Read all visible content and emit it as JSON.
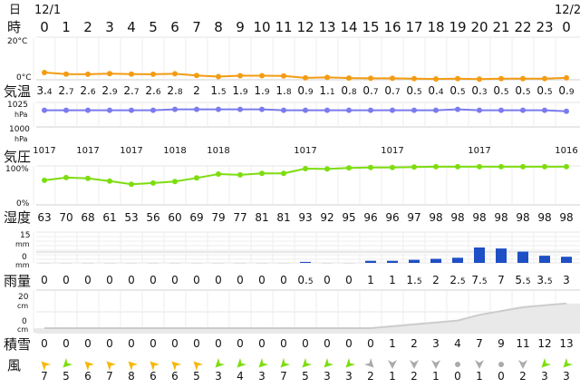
{
  "hour_row": {
    "day_label": "日",
    "hour_label": "時",
    "dates": [
      "12/1",
      "12/2"
    ],
    "hours": [
      0,
      1,
      2,
      3,
      4,
      5,
      6,
      7,
      8,
      9,
      10,
      11,
      12,
      13,
      14,
      15,
      16,
      17,
      18,
      19,
      20,
      21,
      22,
      23,
      0
    ]
  },
  "temperature": {
    "label": "気温",
    "axis_top": "20°C",
    "axis_bottom": "0°C",
    "color": "#f39c12",
    "values": [
      3.4,
      2.7,
      2.6,
      2.9,
      2.7,
      2.6,
      2.8,
      2,
      1.5,
      1.9,
      1.9,
      1.8,
      0.9,
      1.1,
      0.8,
      0.7,
      0.7,
      0.5,
      0.4,
      0.5,
      0.3,
      0.5,
      0.5,
      0.5,
      0.9
    ],
    "labels": [
      "3.4",
      "2.7",
      "2.6",
      "2.9",
      "2.7",
      "2.6",
      "2.8",
      "2",
      "1.5",
      "1.9",
      "1.9",
      "1.8",
      "0.9",
      "1.1",
      "0.8",
      "0.7",
      "0.7",
      "0.5",
      "0.4",
      "0.5",
      "0.3",
      "0.5",
      "0.5",
      "0.5",
      "0.9"
    ]
  },
  "pressure": {
    "label": "気圧",
    "axis_top": "1025",
    "axis_top_unit": "hPa",
    "axis_bottom": "1000",
    "axis_bottom_unit": "hPa",
    "color": "#7b7bee",
    "values": [
      1017,
      1017,
      1017,
      1017,
      1017,
      1017,
      1018,
      1018,
      1018,
      1018,
      1018,
      1017,
      1017,
      1017,
      1017,
      1017,
      1017,
      1017,
      1017,
      1018,
      1017,
      1017,
      1017,
      1017,
      1016
    ],
    "printed": [
      "1017",
      "",
      "1017",
      "",
      "1017",
      "",
      "1018",
      "",
      "1018",
      "",
      "",
      "",
      "1017",
      "",
      "",
      "",
      "1017",
      "",
      "",
      "",
      "1017",
      "",
      "",
      "",
      "1016"
    ]
  },
  "humidity": {
    "label": "湿度",
    "axis_top": "100%",
    "axis_bottom": "0%",
    "color": "#7ddd0f",
    "values": [
      63,
      70,
      68,
      61,
      53,
      56,
      60,
      69,
      79,
      77,
      81,
      81,
      93,
      92,
      95,
      96,
      96,
      97,
      98,
      98,
      98,
      98,
      98,
      98,
      98
    ],
    "labels": [
      "63",
      "70",
      "68",
      "61",
      "53",
      "56",
      "60",
      "69",
      "79",
      "77",
      "81",
      "81",
      "93",
      "92",
      "95",
      "96",
      "96",
      "97",
      "98",
      "98",
      "98",
      "98",
      "98",
      "98",
      "98"
    ]
  },
  "precipitation": {
    "label": "雨量",
    "axis_top": "15",
    "axis_top_unit": "mm",
    "axis_bottom": "0",
    "axis_bottom_unit": "mm",
    "color": "#1f4fc4",
    "values": [
      0,
      0,
      0,
      0,
      0,
      0,
      0,
      0,
      0,
      0,
      0,
      0,
      0.5,
      0,
      0,
      1,
      1,
      1.5,
      2,
      2.5,
      7.5,
      7,
      5.5,
      3.5,
      3
    ],
    "labels": [
      "0",
      "0",
      "0",
      "0",
      "0",
      "0",
      "0",
      "0",
      "0",
      "0",
      "0",
      "0",
      "0.5",
      "0",
      "0",
      "1",
      "1",
      "1.5",
      "2",
      "2.5",
      "7.5",
      "7",
      "5.5",
      "3.5",
      "3"
    ]
  },
  "snow": {
    "label": "積雪",
    "axis_top": "20",
    "axis_top_unit": "cm",
    "axis_bottom": "0",
    "axis_bottom_unit": "cm",
    "color": "#cccccc",
    "values": [
      0,
      0,
      0,
      0,
      0,
      0,
      0,
      0,
      0,
      0,
      0,
      0,
      0,
      0,
      0,
      0,
      1,
      2,
      3,
      4,
      7,
      9,
      11,
      12,
      13
    ],
    "labels": [
      "0",
      "0",
      "0",
      "0",
      "0",
      "0",
      "0",
      "0",
      "0",
      "0",
      "0",
      "0",
      "0",
      "0",
      "0",
      "0",
      "1",
      "2",
      "3",
      "4",
      "7",
      "9",
      "11",
      "12",
      "13"
    ]
  },
  "wind": {
    "label": "風",
    "speeds": [
      7,
      5,
      6,
      7,
      8,
      6,
      6,
      5,
      3,
      4,
      3,
      7,
      5,
      3,
      3,
      2,
      1,
      2,
      1,
      0,
      1,
      0,
      2,
      3,
      3
    ],
    "labels": [
      "7",
      "5",
      "6",
      "7",
      "8",
      "6",
      "6",
      "5",
      "3",
      "4",
      "3",
      "7",
      "5",
      "3",
      "3",
      "2",
      "1",
      "2",
      "1",
      "0",
      "1",
      "0",
      "2",
      "3",
      "3"
    ],
    "directions_deg": [
      45,
      315,
      45,
      45,
      45,
      45,
      45,
      45,
      315,
      315,
      315,
      315,
      315,
      315,
      315,
      225,
      270,
      270,
      270,
      null,
      270,
      null,
      270,
      315,
      315
    ],
    "colors": [
      "#f5b800",
      "#7ddd0f",
      "#f5b800",
      "#f5b800",
      "#f5b800",
      "#f5b800",
      "#f5b800",
      "#f5b800",
      "#7ddd0f",
      "#7ddd0f",
      "#7ddd0f",
      "#7ddd0f",
      "#7ddd0f",
      "#7ddd0f",
      "#7ddd0f",
      "#aaaaaa",
      "#aaaaaa",
      "#aaaaaa",
      "#aaaaaa",
      "#aaaaaa",
      "#aaaaaa",
      "#aaaaaa",
      "#aaaaaa",
      "#7ddd0f",
      "#7ddd0f"
    ]
  }
}
